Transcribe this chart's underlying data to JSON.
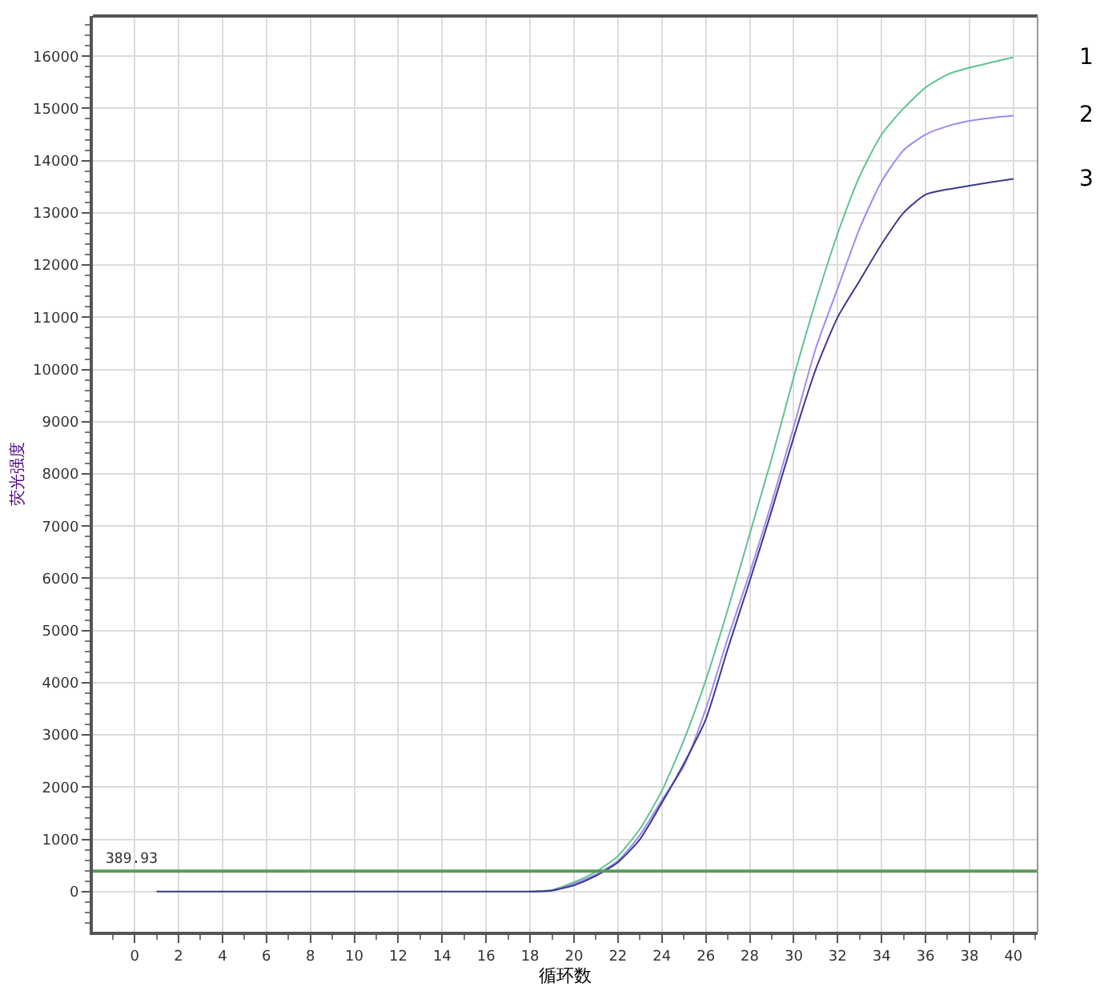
{
  "chart_data": {
    "type": "line",
    "xlabel": "循环数",
    "ylabel": "荧光强度",
    "x": [
      1,
      2,
      3,
      4,
      5,
      6,
      7,
      8,
      9,
      10,
      11,
      12,
      13,
      14,
      15,
      16,
      17,
      18,
      19,
      20,
      21,
      22,
      23,
      24,
      25,
      26,
      27,
      28,
      29,
      30,
      31,
      32,
      33,
      34,
      35,
      36,
      37,
      38,
      39,
      40
    ],
    "series": [
      {
        "name": "1",
        "color": "#5ec48f",
        "values": [
          null,
          null,
          null,
          null,
          null,
          null,
          null,
          null,
          null,
          null,
          null,
          null,
          null,
          null,
          null,
          null,
          null,
          0,
          30,
          180,
          380,
          680,
          1200,
          1930,
          2900,
          4050,
          5400,
          6850,
          8300,
          9850,
          11300,
          12600,
          13700,
          14500,
          15000,
          15400,
          15650,
          15780,
          15880,
          15980
        ]
      },
      {
        "name": "2",
        "color": "#9b8cf0",
        "values": [
          null,
          null,
          null,
          null,
          null,
          null,
          null,
          null,
          null,
          null,
          null,
          null,
          null,
          null,
          null,
          null,
          null,
          0,
          20,
          150,
          330,
          590,
          1080,
          1750,
          2400,
          3500,
          4850,
          6100,
          7450,
          8900,
          10400,
          11550,
          12700,
          13600,
          14200,
          14500,
          14660,
          14760,
          14820,
          14860
        ]
      },
      {
        "name": "3",
        "color": "#3a3a8c",
        "values": [
          0,
          0,
          0,
          0,
          0,
          0,
          0,
          0,
          0,
          0,
          0,
          0,
          0,
          0,
          0,
          0,
          0,
          0,
          20,
          120,
          300,
          560,
          1000,
          1700,
          2450,
          3300,
          4650,
          5950,
          7300,
          8700,
          10000,
          11000,
          11700,
          12400,
          13000,
          13350,
          13450,
          13520,
          13590,
          13650
        ]
      }
    ],
    "xlim": [
      -1.9,
      41.1
    ],
    "ylim": [
      -770,
      16770
    ],
    "xticks": [
      0,
      2,
      4,
      6,
      8,
      10,
      12,
      14,
      16,
      18,
      20,
      22,
      24,
      26,
      28,
      30,
      32,
      34,
      36,
      38,
      40
    ],
    "yticks": [
      0,
      1000,
      2000,
      3000,
      4000,
      5000,
      6000,
      7000,
      8000,
      9000,
      10000,
      11000,
      12000,
      13000,
      14000,
      15000,
      16000
    ],
    "ref_lines": [
      {
        "axis": "y",
        "value": 389.93,
        "label": "389.93",
        "color": "#5a9a5a"
      }
    ],
    "grid": true,
    "legend": false,
    "line_style": "solid",
    "marker": "none"
  }
}
